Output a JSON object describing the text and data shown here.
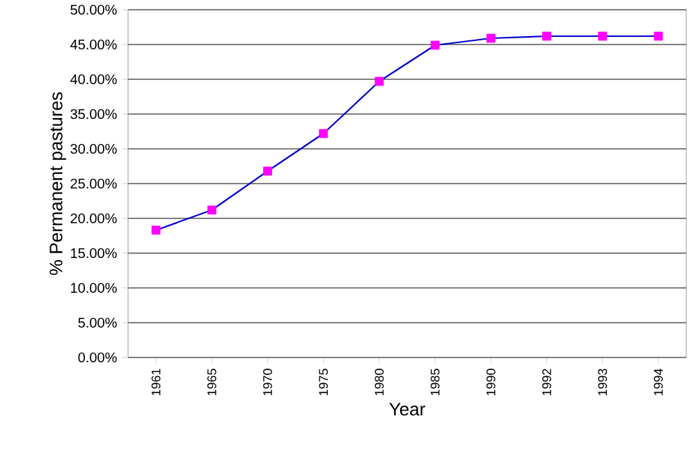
{
  "chart_data": {
    "type": "line",
    "xlabel": "Year",
    "ylabel": "% Permanent pastures",
    "categories": [
      "1961",
      "1965",
      "1970",
      "1975",
      "1980",
      "1985",
      "1990",
      "1992",
      "1993",
      "1994"
    ],
    "series": [
      {
        "color": "#0000cc",
        "colors": [
          "#ff00ff",
          "#ff00ff",
          "#ff00ff",
          "#ff00ff",
          "#ff00ff",
          "#ff00ff",
          "#ff00ff",
          "#ff00ff",
          "#ff00ff",
          "#ff00ff"
        ],
        "values": [
          18.3,
          21.2,
          26.8,
          32.2,
          39.7,
          44.9,
          45.9,
          46.2,
          46.2,
          46.2
        ]
      }
    ],
    "marker": "square",
    "line_style": "solid",
    "grid": "y",
    "ylim": [
      0,
      50
    ],
    "yticks": [
      {
        "value": 0,
        "label": "0.00%"
      },
      {
        "value": 5,
        "label": "5.00%"
      },
      {
        "value": 10,
        "label": "10.00%"
      },
      {
        "value": 15,
        "label": "15.00%"
      },
      {
        "value": 20,
        "label": "20.00%"
      },
      {
        "value": 25,
        "label": "25.00%"
      },
      {
        "value": 30,
        "label": "30.00%"
      },
      {
        "value": 35,
        "label": "35.00%"
      },
      {
        "value": 40,
        "label": "40.00%"
      },
      {
        "value": 45,
        "label": "45.00%"
      },
      {
        "value": 50,
        "label": "50.00%"
      }
    ]
  }
}
